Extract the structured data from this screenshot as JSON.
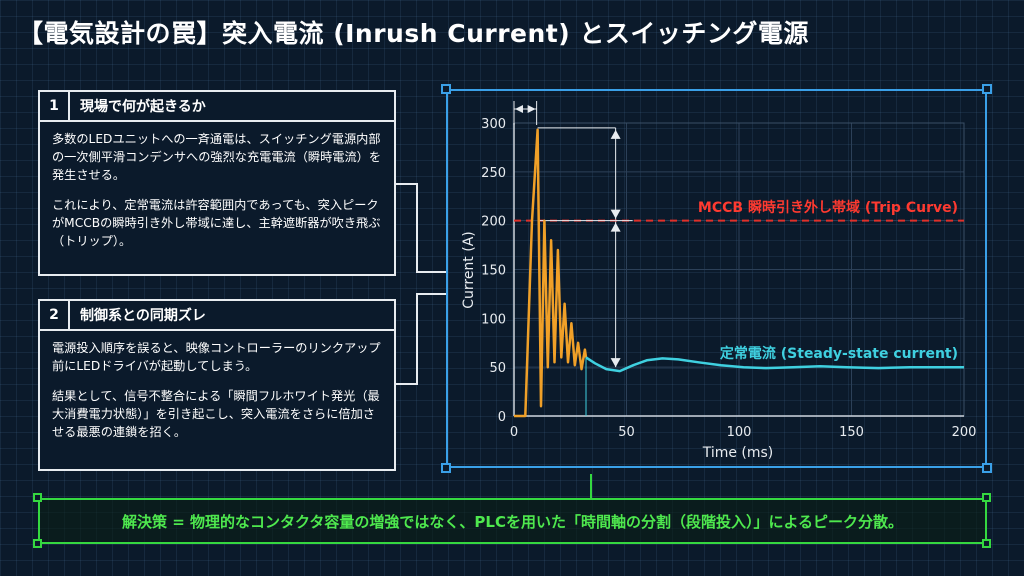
{
  "title": "【電気設計の罠】突入電流 (Inrush Current) とスイッチング電源",
  "cards": [
    {
      "num": "1",
      "heading": "現場で何が起きるか",
      "paragraphs": [
        "多数のLEDユニットへの一斉通電は、スイッチング電源内部の一次側平滑コンデンサへの強烈な充電電流（瞬時電流）を発生させる。",
        "これにより、定常電流は許容範囲内であっても、突入ピークがMCCBの瞬時引き外し帯域に達し、主幹遮断器が吹き飛ぶ（トリップ）。"
      ]
    },
    {
      "num": "2",
      "heading": "制御系との同期ズレ",
      "paragraphs": [
        "電源投入順序を誤ると、映像コントローラーのリンクアップ前にLEDドライバが起動してしまう。",
        "結果として、信号不整合による「瞬間フルホワイト発光（最大消費電力状態）」を引き起こし、突入電流をさらに倍加させる最悪の連鎖を招く。"
      ]
    }
  ],
  "solution": "解決策 = 物理的なコンタクタ容量の増強ではなく、PLCを用いた「時間軸の分割（段階投入）」によるピーク分散。",
  "colors": {
    "background": "#0b1a2b",
    "frame": "#3aa0e8",
    "inrush": "#f0a028",
    "steady": "#3fd0e0",
    "trip": "#e0302a",
    "solution": "#35d840"
  },
  "chart_data": {
    "type": "line",
    "xlabel": "Time (ms)",
    "ylabel": "Current (A)",
    "xlim": [
      0,
      200
    ],
    "ylim": [
      0,
      300
    ],
    "xticks": [
      0,
      50,
      100,
      150,
      200
    ],
    "yticks": [
      0,
      50,
      100,
      150,
      200,
      250,
      300
    ],
    "grid": true,
    "annotations": {
      "trip_label": "MCCB 瞬時引き外し帯域 (Trip Curve)",
      "steady_label": "定常電流 (Steady-state current)"
    },
    "trip_level": 200,
    "series": [
      {
        "name": "inrush",
        "x": [
          0,
          5,
          8,
          10.5,
          12,
          13.5,
          15,
          16.5,
          18,
          19.5,
          21,
          22.5,
          24,
          25.5,
          27,
          28.5,
          30,
          31.5,
          32
        ],
        "y": [
          0,
          0,
          200,
          293,
          10,
          200,
          50,
          180,
          55,
          170,
          60,
          115,
          55,
          95,
          52,
          75,
          48,
          68,
          60
        ]
      },
      {
        "name": "steady",
        "x": [
          32,
          36,
          41,
          47,
          53,
          59,
          66,
          73,
          82,
          92,
          102,
          112,
          124,
          136,
          148,
          162,
          176,
          190,
          200
        ],
        "y": [
          60,
          54,
          48,
          46,
          52,
          57,
          59,
          58,
          55,
          52,
          50,
          49,
          50,
          51,
          50,
          49,
          50,
          50,
          50
        ]
      }
    ]
  }
}
